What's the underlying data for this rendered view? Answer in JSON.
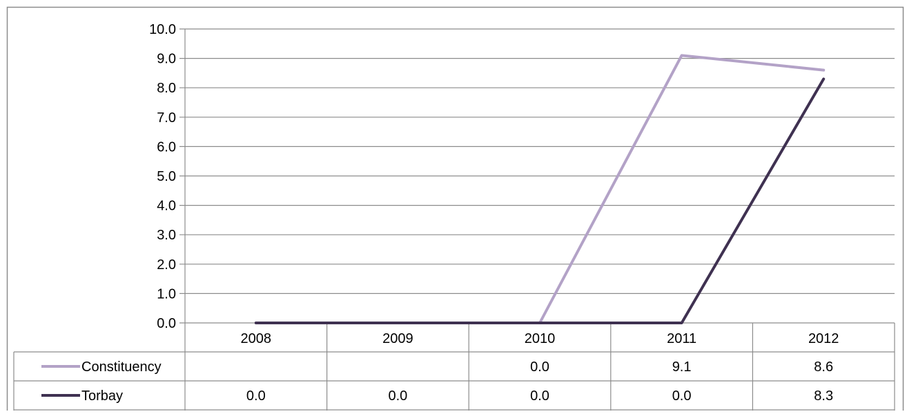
{
  "chart_data": {
    "type": "line",
    "categories": [
      "2008",
      "2009",
      "2010",
      "2011",
      "2012"
    ],
    "series": [
      {
        "name": "Constituency",
        "values": [
          null,
          null,
          0.0,
          9.1,
          8.6
        ],
        "labels": [
          "",
          "",
          "0.0",
          "9.1",
          "8.6"
        ],
        "color": "#b3a2c7"
      },
      {
        "name": "Torbay",
        "values": [
          0.0,
          0.0,
          0.0,
          0.0,
          8.3
        ],
        "labels": [
          "0.0",
          "0.0",
          "0.0",
          "0.0",
          "8.3"
        ],
        "color": "#3f3151"
      }
    ],
    "y_ticks": [
      "0.0",
      "1.0",
      "2.0",
      "3.0",
      "4.0",
      "5.0",
      "6.0",
      "7.0",
      "8.0",
      "9.0",
      "10.0"
    ],
    "ylim": [
      0,
      10
    ],
    "grid": true,
    "legend": "data-table-left",
    "title": "",
    "xlabel": "",
    "ylabel": ""
  }
}
